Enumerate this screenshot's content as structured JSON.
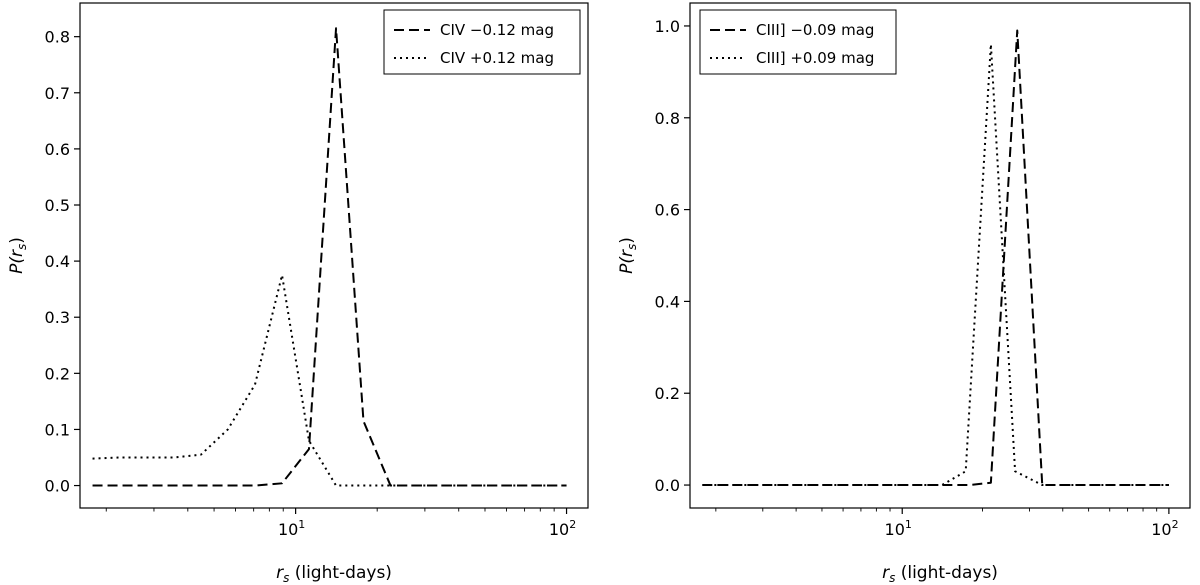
{
  "chart_data": [
    {
      "type": "line",
      "xscale": "log",
      "xlim": [
        1.6,
        120
      ],
      "ylim": [
        -0.04,
        0.86
      ],
      "xlabel_symbol": "r",
      "xlabel_subscript": "s",
      "xlabel_rest": " (light-days)",
      "ylabel_prefix": "P(r",
      "ylabel_subscript": "s",
      "ylabel_suffix": ")",
      "yticks": [
        0.0,
        0.1,
        0.2,
        0.3,
        0.4,
        0.5,
        0.6,
        0.7,
        0.8
      ],
      "ytick_labels": [
        "0.0",
        "0.1",
        "0.2",
        "0.3",
        "0.4",
        "0.5",
        "0.6",
        "0.7",
        "0.8"
      ],
      "xticks": [
        10,
        100
      ],
      "xtick_base": "10",
      "xtick_exponents": [
        "1",
        "2"
      ],
      "legend_position": "top-right",
      "series": [
        {
          "name": "CIV −0.12 mag",
          "style": "dashed",
          "color": "#000000",
          "x": [
            1.78,
            2.24,
            2.82,
            3.55,
            4.47,
            5.62,
            7.08,
            8.91,
            11.2,
            14.1,
            17.8,
            22.4,
            28.2,
            35.5,
            44.7,
            56.2,
            70.8,
            89.1,
            100
          ],
          "values": [
            0.0,
            0.0,
            0.0,
            0.0,
            0.0,
            0.0,
            0.0,
            0.004,
            0.065,
            0.815,
            0.115,
            0.0,
            0.0,
            0.0,
            0.0,
            0.0,
            0.0,
            0.0,
            0.0
          ]
        },
        {
          "name": "CIV +0.12 mag",
          "style": "dotted",
          "color": "#000000",
          "x": [
            1.78,
            2.24,
            2.82,
            3.55,
            4.47,
            5.62,
            7.08,
            8.91,
            11.2,
            14.1,
            17.8,
            22.4,
            28.2,
            35.5,
            44.7,
            56.2,
            70.8,
            89.1,
            100
          ],
          "values": [
            0.048,
            0.05,
            0.05,
            0.05,
            0.055,
            0.1,
            0.18,
            0.375,
            0.08,
            0.0,
            0.0,
            0.0,
            0.0,
            0.0,
            0.0,
            0.0,
            0.0,
            0.0,
            0.0
          ]
        }
      ]
    },
    {
      "type": "line",
      "xscale": "log",
      "xlim": [
        1.6,
        120
      ],
      "ylim": [
        -0.05,
        1.05
      ],
      "xlabel_symbol": "r",
      "xlabel_subscript": "s",
      "xlabel_rest": " (light-days)",
      "ylabel_prefix": "P(r",
      "ylabel_subscript": "s",
      "ylabel_suffix": ")",
      "yticks": [
        0.0,
        0.2,
        0.4,
        0.6,
        0.8,
        1.0
      ],
      "ytick_labels": [
        "0.0",
        "0.2",
        "0.4",
        "0.6",
        "0.8",
        "1.0"
      ],
      "xticks": [
        10,
        100
      ],
      "xtick_base": "10",
      "xtick_exponents": [
        "1",
        "2"
      ],
      "legend_position": "top-left",
      "series": [
        {
          "name": "CIII] −0.09 mag",
          "style": "dashed",
          "color": "#000000",
          "x": [
            1.78,
            2.24,
            2.82,
            3.55,
            4.47,
            5.62,
            7.08,
            8.91,
            11.2,
            14.1,
            17.8,
            21.5,
            27.0,
            33.5,
            44.7,
            56.2,
            70.8,
            89.1,
            100
          ],
          "values": [
            0.0,
            0.0,
            0.0,
            0.0,
            0.0,
            0.0,
            0.0,
            0.0,
            0.0,
            0.0,
            0.0,
            0.005,
            0.99,
            0.0,
            0.0,
            0.0,
            0.0,
            0.0,
            0.0
          ]
        },
        {
          "name": "CIII] +0.09 mag",
          "style": "dotted",
          "color": "#000000",
          "x": [
            1.78,
            2.24,
            2.82,
            3.55,
            4.47,
            5.62,
            7.08,
            8.91,
            11.2,
            14.1,
            17.3,
            21.5,
            26.5,
            33.5,
            44.7,
            56.2,
            70.8,
            89.1,
            100
          ],
          "values": [
            0.0,
            0.0,
            0.0,
            0.0,
            0.0,
            0.0,
            0.0,
            0.0,
            0.0,
            0.0,
            0.03,
            0.96,
            0.03,
            0.0,
            0.0,
            0.0,
            0.0,
            0.0,
            0.0
          ]
        }
      ]
    }
  ]
}
